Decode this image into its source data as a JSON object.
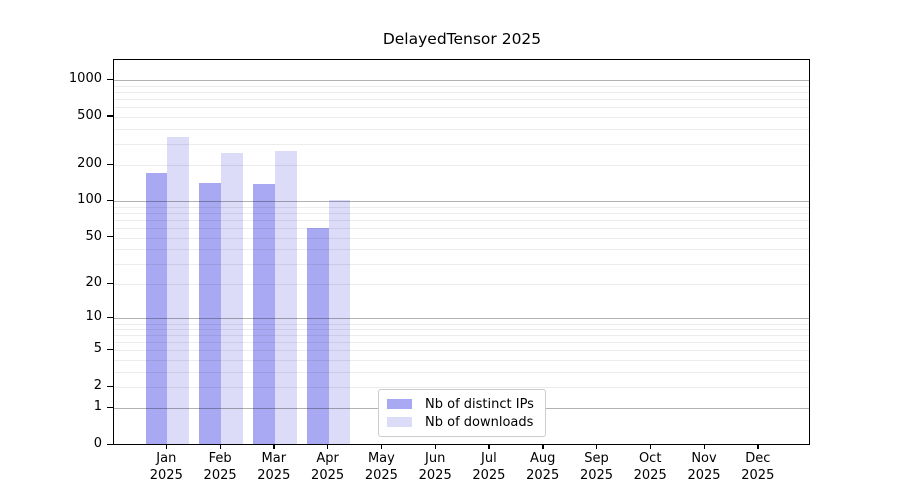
{
  "chart_data": {
    "type": "bar",
    "title": "DelayedTensor 2025",
    "categories": [
      "Jan",
      "Feb",
      "Mar",
      "Apr",
      "May",
      "Jun",
      "Jul",
      "Aug",
      "Sep",
      "Oct",
      "Nov",
      "Dec"
    ],
    "category_year": "2025",
    "series": [
      {
        "name": "Nb of distinct IPs",
        "color": "#a9a9f3",
        "values": [
          170,
          139,
          136,
          59,
          0,
          0,
          0,
          0,
          0,
          0,
          0,
          0
        ]
      },
      {
        "name": "Nb of downloads",
        "color": "#dcdcf9",
        "values": [
          335,
          246,
          256,
          100,
          0,
          0,
          0,
          0,
          0,
          0,
          0,
          0
        ]
      }
    ],
    "y_ticks": [
      0,
      1,
      2,
      5,
      10,
      20,
      50,
      100,
      200,
      500,
      1000
    ],
    "y_scale": "log1p",
    "ylim": [
      0,
      1470
    ],
    "grid": "both",
    "legend_position": "bottom-center-inside"
  },
  "colors": {
    "background": "#ffffff",
    "axis": "#000000",
    "major_gridline": "#b3b3b3",
    "minor_gridline": "#ebebeb",
    "legend_border": "#cccccc",
    "bar_distinct_ips": "#a9a9f3",
    "bar_downloads": "#dcdcf9"
  }
}
